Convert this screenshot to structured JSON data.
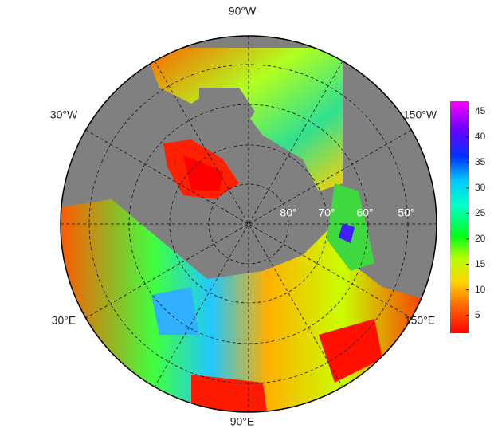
{
  "map": {
    "longitude_labels": [
      "90°W",
      "150°W",
      "150°E",
      "90°E",
      "30°E",
      "30°W"
    ],
    "latitude_labels": [
      "80°",
      "70°",
      "60°",
      "50°"
    ]
  },
  "colorbar": {
    "lim": [
      1.5,
      47
    ],
    "ticks": [
      5,
      10,
      15,
      20,
      25,
      30,
      35,
      40,
      45
    ]
  }
}
